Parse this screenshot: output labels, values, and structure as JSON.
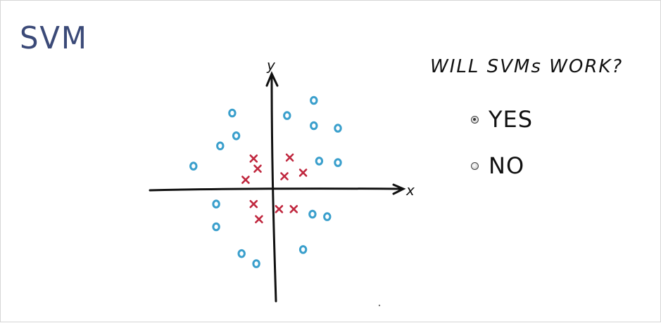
{
  "slide": {
    "title": "SVM"
  },
  "quiz": {
    "question": "WILL SVMs WORK?",
    "options": [
      {
        "label": "YES",
        "selected": true
      },
      {
        "label": "NO",
        "selected": false
      }
    ]
  },
  "plot": {
    "x_axis_label": "x",
    "y_axis_label": "y",
    "colors": {
      "o": "#3a9fcc",
      "x": "#c0283f",
      "axis": "#111111",
      "title": "#3b4a78"
    },
    "points_o": [
      [
        -1.45,
        1.5
      ],
      [
        -1.3,
        1.05
      ],
      [
        -1.9,
        0.85
      ],
      [
        -2.9,
        0.45
      ],
      [
        0.6,
        1.45
      ],
      [
        1.6,
        1.75
      ],
      [
        1.6,
        1.25
      ],
      [
        2.5,
        1.2
      ],
      [
        1.8,
        0.55
      ],
      [
        2.5,
        0.52
      ],
      [
        -2.05,
        -0.3
      ],
      [
        -2.05,
        -0.75
      ],
      [
        -1.1,
        -1.28
      ],
      [
        -0.55,
        -1.48
      ],
      [
        1.55,
        -0.5
      ],
      [
        2.1,
        -0.55
      ],
      [
        1.2,
        -1.2
      ]
    ],
    "points_x": [
      [
        -0.65,
        0.6
      ],
      [
        -0.5,
        0.4
      ],
      [
        -0.95,
        0.18
      ],
      [
        0.7,
        0.62
      ],
      [
        0.5,
        0.25
      ],
      [
        1.2,
        0.32
      ],
      [
        -0.65,
        -0.3
      ],
      [
        0.3,
        -0.4
      ],
      [
        0.85,
        -0.4
      ],
      [
        -0.45,
        -0.6
      ]
    ]
  }
}
